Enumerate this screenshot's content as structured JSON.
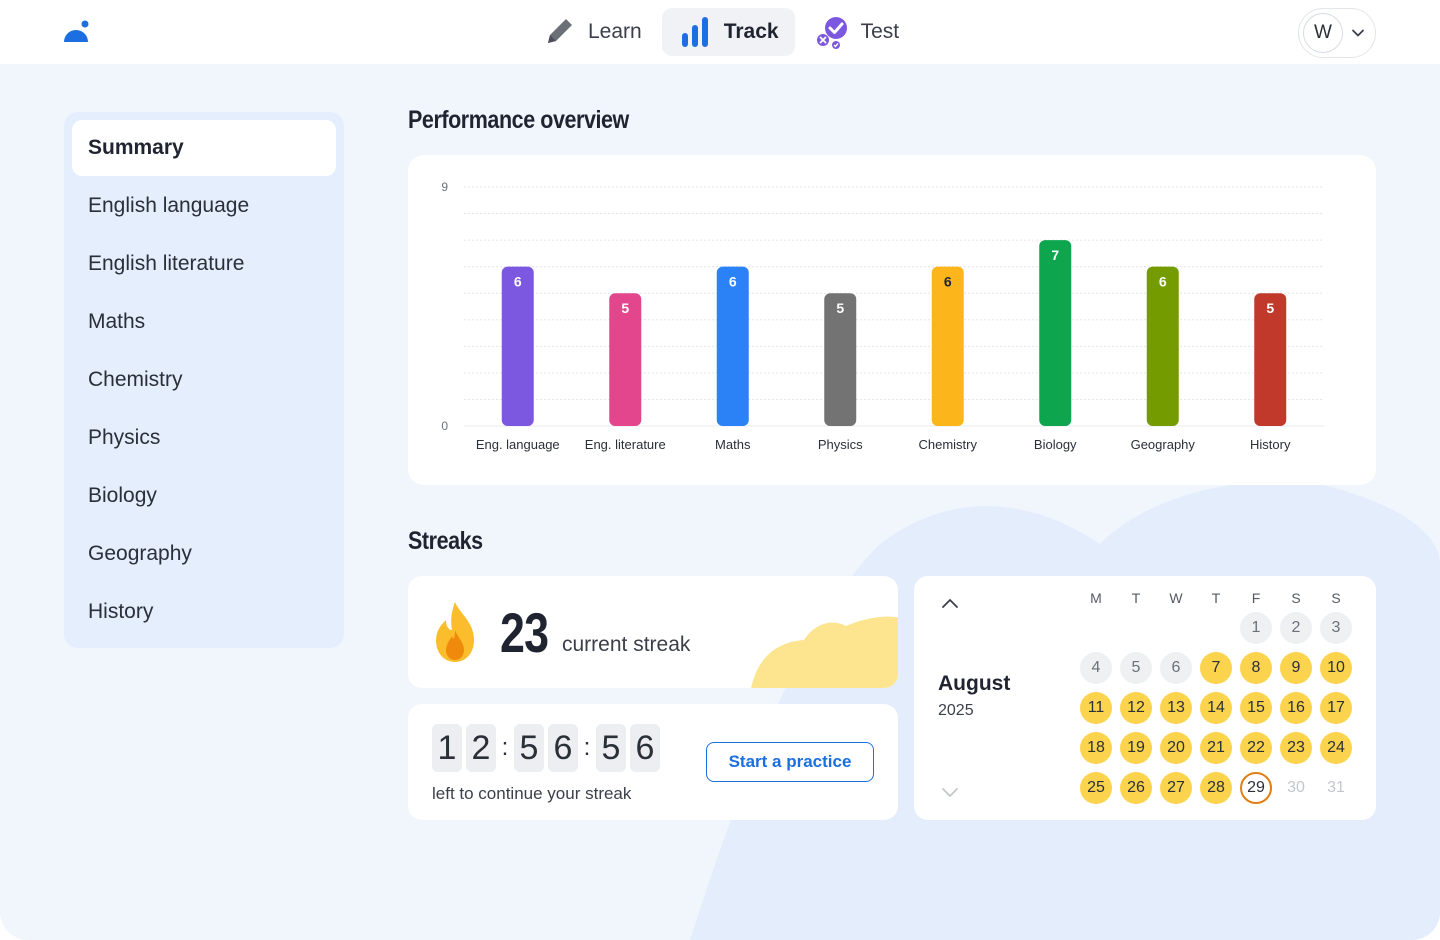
{
  "nav": {
    "items": [
      {
        "label": "Learn",
        "icon": "pencil-icon"
      },
      {
        "label": "Track",
        "icon": "bar-chart-icon",
        "active": true
      },
      {
        "label": "Test",
        "icon": "test-check-icon"
      }
    ],
    "avatar_initial": "W"
  },
  "sidebar": {
    "items": [
      {
        "label": "Summary",
        "active": true
      },
      {
        "label": "English language"
      },
      {
        "label": "English literature"
      },
      {
        "label": "Maths"
      },
      {
        "label": "Chemistry"
      },
      {
        "label": "Physics"
      },
      {
        "label": "Biology"
      },
      {
        "label": "Geography"
      },
      {
        "label": "History"
      }
    ]
  },
  "performance": {
    "title": "Performance overview"
  },
  "chart_data": {
    "type": "bar",
    "categories": [
      "Eng. language",
      "Eng. literature",
      "Maths",
      "Physics",
      "Chemistry",
      "Biology",
      "Geography",
      "History"
    ],
    "values": [
      6,
      5,
      6,
      5,
      6,
      7,
      6,
      5
    ],
    "colors": [
      "#7c57e0",
      "#e3468c",
      "#2b82f6",
      "#737373",
      "#fdb51c",
      "#0ea54f",
      "#749c00",
      "#c0392b"
    ],
    "label_colors": [
      "#ffffff",
      "#ffffff",
      "#ffffff",
      "#ffffff",
      "#1f2430",
      "#ffffff",
      "#ffffff",
      "#ffffff"
    ],
    "ylim": [
      0,
      9
    ],
    "yticks": [
      "0",
      "9"
    ],
    "grid": true,
    "title": "",
    "xlabel": "",
    "ylabel": ""
  },
  "streaks": {
    "title": "Streaks",
    "count": "23",
    "label": "current streak",
    "timer_digits": [
      "1",
      "2",
      "5",
      "6",
      "5",
      "6"
    ],
    "timer_text": "left to continue your streak",
    "practice_button": "Start a practice"
  },
  "calendar": {
    "month": "August",
    "year": "2025",
    "weekdays": [
      "M",
      "T",
      "W",
      "T",
      "F",
      "S",
      "S"
    ],
    "first_weekday_index": 4,
    "days_in_month": 31,
    "today": 29,
    "streak_start": 7,
    "accent": "#fcd34d",
    "today_ring": "#e07f12"
  }
}
